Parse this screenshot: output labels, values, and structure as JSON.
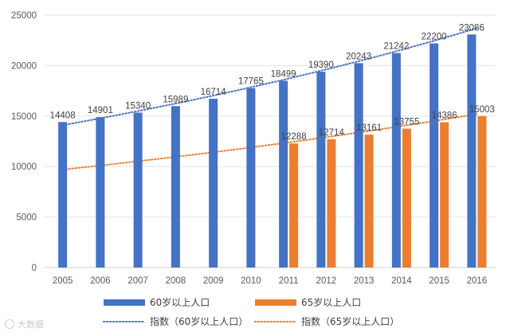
{
  "chart_data": {
    "type": "bar",
    "categories": [
      "2005",
      "2006",
      "2007",
      "2008",
      "2009",
      "2010",
      "2011",
      "2012",
      "2013",
      "2014",
      "2015",
      "2016"
    ],
    "ylim": [
      0,
      25000
    ],
    "yticks": [
      "0",
      "5000",
      "10000",
      "15000",
      "20000",
      "25000"
    ],
    "series": [
      {
        "name": "60岁以上人口",
        "color": "#4472C4",
        "values": [
          14408,
          14901,
          15340,
          15989,
          16714,
          17765,
          18499,
          19390,
          20243,
          21242,
          22200,
          23086
        ],
        "labels": [
          "14408",
          "14901",
          "15340",
          "15989",
          "16714",
          "17765",
          "18499",
          "19390",
          "20243",
          "21242",
          "22200",
          "23086"
        ]
      },
      {
        "name": "65岁以上人口",
        "color": "#ED7D31",
        "values": [
          null,
          null,
          null,
          null,
          null,
          null,
          12288,
          12714,
          13161,
          13755,
          14386,
          15003
        ],
        "labels": [
          "",
          "",
          "",
          "",
          "",
          "",
          "12288",
          "12714",
          "13161",
          "13755",
          "14386",
          "15003"
        ]
      }
    ],
    "trendlines": [
      {
        "name": "指数（60岁以上人口）",
        "color": "#4472C4",
        "style": "dotted",
        "start": 14100,
        "end": 23700
      },
      {
        "name": "指数（65岁以上人口）",
        "color": "#ED7D31",
        "style": "dotted",
        "start": 9700,
        "end": 15200
      }
    ],
    "legend": {
      "position": "bottom",
      "items": [
        {
          "label": "60岁以上人口",
          "kind": "bar",
          "color": "#4472C4"
        },
        {
          "label": "65岁以上人口",
          "kind": "bar",
          "color": "#ED7D31"
        },
        {
          "label": "指数（60岁以上人口）",
          "kind": "dotted",
          "color": "#4472C4"
        },
        {
          "label": "指数（65岁以上人口）",
          "kind": "dotted",
          "color": "#ED7D31"
        }
      ]
    },
    "grid": true
  },
  "watermark": "大数据"
}
